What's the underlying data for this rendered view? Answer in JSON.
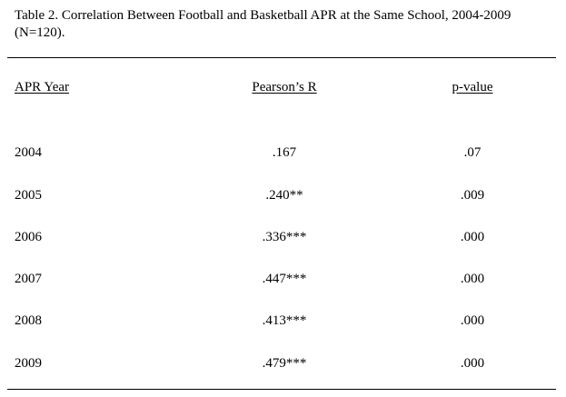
{
  "caption": {
    "line1": "Table 2. Correlation Between Football and Basketball APR at the Same School, 2004-2009",
    "line2": "(N=120)."
  },
  "table": {
    "headers": [
      "APR Year",
      "Pearson’s R",
      "p-value"
    ],
    "rows": [
      {
        "year": "2004",
        "r": ".167",
        "p": ".07"
      },
      {
        "year": "2005",
        "r": ".240**",
        "p": ".009"
      },
      {
        "year": "2006",
        "r": ".336***",
        "p": ".000"
      },
      {
        "year": "2007",
        "r": ".447***",
        "p": ".000"
      },
      {
        "year": "2008",
        "r": ".413***",
        "p": ".000"
      },
      {
        "year": "2009",
        "r": ".479***",
        "p": ".000"
      }
    ]
  }
}
